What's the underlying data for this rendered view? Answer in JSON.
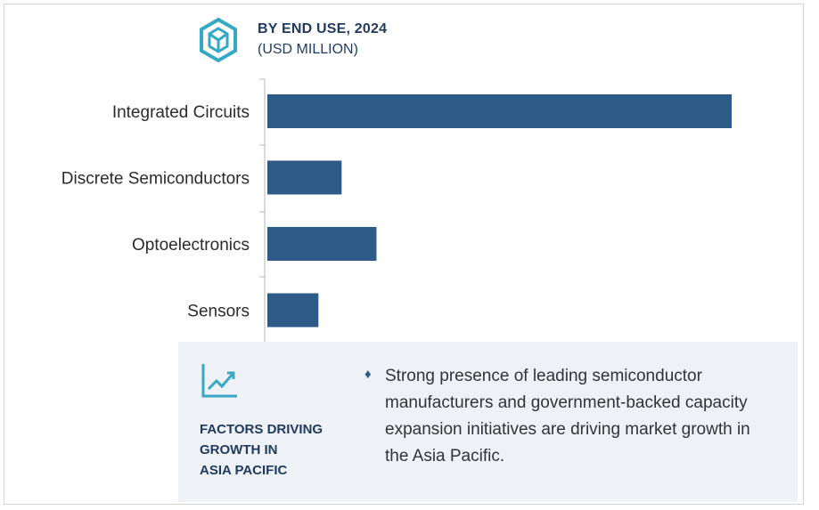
{
  "header": {
    "title": "BY END USE, 2024",
    "subtitle": "(USD MILLION)",
    "logo_icon": "hexagon-y-icon",
    "accent_color": "#35a8c4"
  },
  "chart_data": {
    "type": "bar",
    "orientation": "horizontal",
    "categories": [
      "Integrated Circuits",
      "Discrete Semiconductors",
      "Optoelectronics",
      "Sensors"
    ],
    "values": [
      100,
      16,
      23.5,
      11
    ],
    "bar_color": "#2e5a88",
    "title": "",
    "xlabel": "",
    "ylabel": "",
    "xlim": [
      0,
      100
    ],
    "grid": false,
    "legend": "none"
  },
  "factors": {
    "icon": "line-chart-icon",
    "title": "FACTORS DRIVING\nGROWTH IN\nASIA PACIFIC",
    "bullet_icon": "diamond-bullet-icon",
    "bullets": [
      "Strong presence of leading semiconductor manufacturers and government-backed capacity expansion initiatives are driving market growth in the Asia Pacific."
    ]
  }
}
